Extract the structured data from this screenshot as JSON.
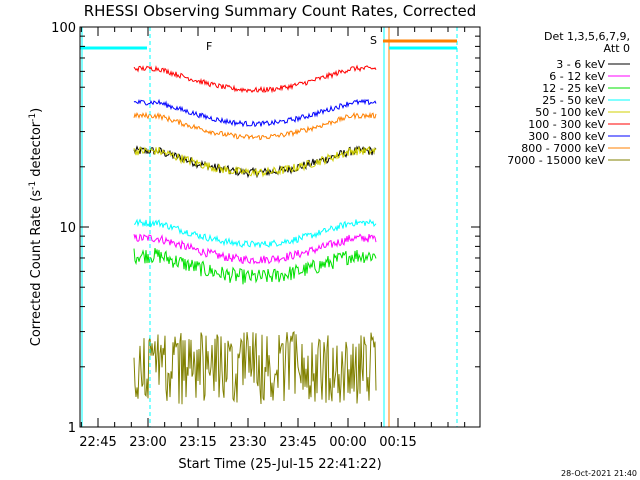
{
  "chart_data": {
    "type": "line",
    "title": "RHESSI Observing Summary Count Rates, Corrected",
    "ylabel": "Corrected Count Rate (s",
    "ylabel_exp1": "-1",
    "ylabel_mid": " detector",
    "ylabel_exp2": "-1",
    "ylabel_end": ")",
    "xlabel": "Start Time (25-Jul-15 22:41:22)",
    "y_scale": "log",
    "ylim": [
      1,
      100
    ],
    "y_ticks": [
      {
        "value": 1,
        "label": "1"
      },
      {
        "value": 10,
        "label": "10"
      },
      {
        "value": 100,
        "label": "100"
      }
    ],
    "x_ticks": [
      "22:45",
      "23:00",
      "23:15",
      "23:30",
      "23:45",
      "00:00",
      "00:15"
    ],
    "legend_header": [
      "Det 1,3,5,6,7,9,",
      "Att 0"
    ],
    "legend_placement": "right",
    "series": [
      {
        "name": "3 - 6 keV",
        "color": "#000000",
        "level": 24,
        "noise": 0.05
      },
      {
        "name": "6 - 12 keV",
        "color": "#ff00ff",
        "level": 8.8,
        "noise": 0.05
      },
      {
        "name": "12 - 25 keV",
        "color": "#00e000",
        "level": 7.2,
        "noise": 0.09
      },
      {
        "name": "25 - 50 keV",
        "color": "#00ffff",
        "level": 10.5,
        "noise": 0.04
      },
      {
        "name": "50 - 100 keV",
        "color": "#d0d000",
        "level": 24,
        "noise": 0.05
      },
      {
        "name": "100 - 300 keV",
        "color": "#ff0000",
        "level": 62,
        "noise": 0.03
      },
      {
        "name": "300 - 800 keV",
        "color": "#0000ff",
        "level": 42,
        "noise": 0.03
      },
      {
        "name": "800 - 7000 keV",
        "color": "#ff8000",
        "level": 36,
        "noise": 0.03
      },
      {
        "name": "7000 - 15000 keV",
        "color": "#808000",
        "level": 2,
        "noise": 0.4
      }
    ],
    "flags": [
      "F",
      "S"
    ],
    "timestamp": "28-Oct-2021 21:40"
  }
}
